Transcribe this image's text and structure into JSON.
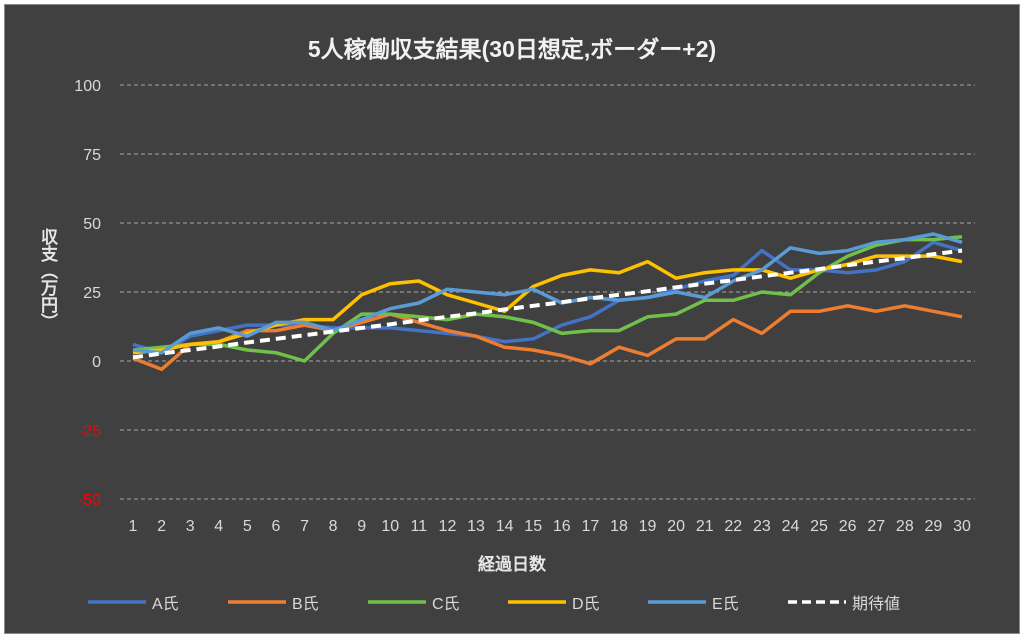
{
  "chart_data": {
    "type": "line",
    "title": "5人稼働収支結果(30日想定,ボーダー+2)",
    "xlabel": "経過日数",
    "ylabel": "収支（万円）",
    "ylim": [
      -50,
      100
    ],
    "yticks": [
      100,
      75,
      50,
      25,
      0,
      -25,
      -50
    ],
    "x": [
      1,
      2,
      3,
      4,
      5,
      6,
      7,
      8,
      9,
      10,
      11,
      12,
      13,
      14,
      15,
      16,
      17,
      18,
      19,
      20,
      21,
      22,
      23,
      24,
      25,
      26,
      27,
      28,
      29,
      30
    ],
    "grid": true,
    "legend_position": "bottom",
    "negative_tick_color": "#ff0000",
    "series": [
      {
        "name": "A氏",
        "color": "#4472c4",
        "dash": false,
        "values": [
          6,
          3,
          9,
          11,
          13,
          13,
          13,
          12,
          12,
          12,
          11,
          10,
          9,
          7,
          8,
          13,
          16,
          22,
          23,
          26,
          29,
          31,
          40,
          33,
          33,
          32,
          33,
          36,
          43,
          40
        ]
      },
      {
        "name": "B氏",
        "color": "#ed7d31",
        "dash": false,
        "values": [
          1,
          -3,
          6,
          7,
          11,
          11,
          13,
          11,
          14,
          17,
          14,
          11,
          9,
          5,
          4,
          2,
          -1,
          5,
          2,
          8,
          8,
          15,
          10,
          18,
          18,
          20,
          18,
          20,
          18,
          16
        ]
      },
      {
        "name": "C氏",
        "color": "#70c04a",
        "dash": false,
        "values": [
          4,
          5,
          6,
          6,
          4,
          3,
          0,
          10,
          17,
          17,
          16,
          15,
          17,
          16,
          14,
          10,
          11,
          11,
          16,
          17,
          22,
          22,
          25,
          24,
          32,
          38,
          42,
          44,
          44,
          45
        ]
      },
      {
        "name": "D氏",
        "color": "#ffc000",
        "dash": false,
        "values": [
          3,
          4,
          6,
          7,
          10,
          13,
          15,
          15,
          24,
          28,
          29,
          24,
          21,
          18,
          27,
          31,
          33,
          32,
          36,
          30,
          32,
          33,
          33,
          30,
          33,
          35,
          38,
          38,
          38,
          36
        ]
      },
      {
        "name": "E氏",
        "color": "#5b9bd5",
        "dash": false,
        "values": [
          4,
          3,
          10,
          12,
          9,
          14,
          14,
          11,
          15,
          19,
          21,
          26,
          25,
          24,
          26,
          21,
          23,
          22,
          23,
          25,
          23,
          29,
          33,
          41,
          39,
          40,
          43,
          44,
          46,
          43
        ]
      },
      {
        "name": "期待値",
        "color": "#ffffff",
        "dash": true,
        "values": [
          1.3,
          2.7,
          4,
          5.3,
          6.7,
          8,
          9.3,
          10.7,
          12,
          13.3,
          14.7,
          16,
          17.3,
          18.7,
          20,
          21.3,
          22.7,
          24,
          25.3,
          26.7,
          28,
          29.3,
          30.7,
          32,
          33.3,
          34.7,
          36,
          37.3,
          38.7,
          40
        ]
      }
    ]
  }
}
